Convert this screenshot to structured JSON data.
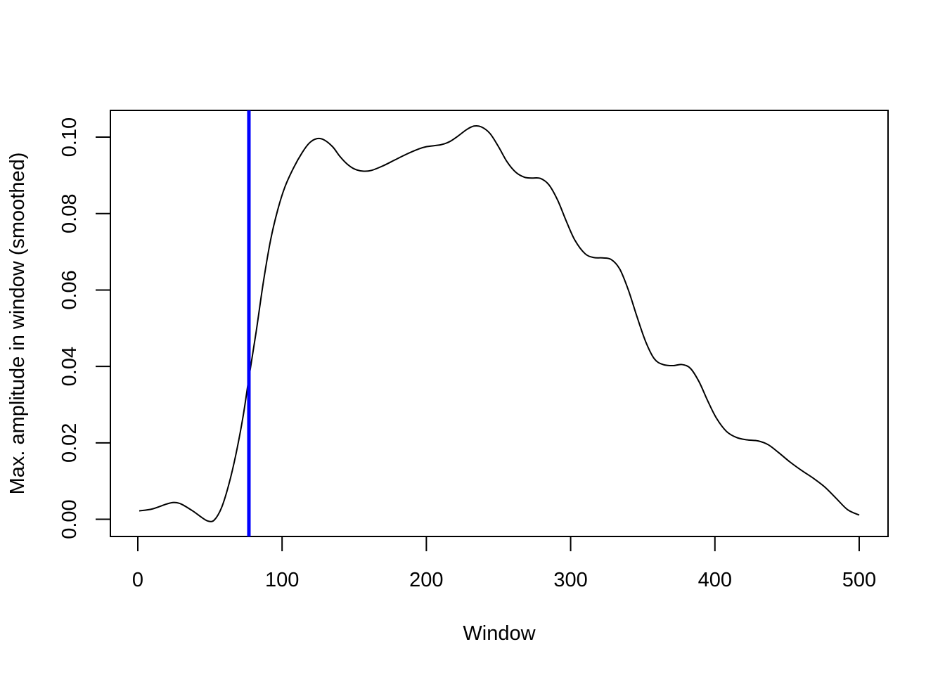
{
  "chart_data": {
    "type": "line",
    "xlabel": "Window",
    "ylabel": "Max. amplitude in window (smoothed)",
    "xlim": [
      -19,
      520
    ],
    "ylim": [
      -0.0045,
      0.107
    ],
    "x_ticks": [
      0,
      100,
      200,
      300,
      400,
      500
    ],
    "y_ticks": [
      0.0,
      0.02,
      0.04,
      0.06,
      0.08,
      0.1
    ],
    "x_tick_labels": [
      "0",
      "100",
      "200",
      "300",
      "400",
      "500"
    ],
    "y_tick_labels": [
      "0.00",
      "0.02",
      "0.04",
      "0.06",
      "0.08",
      "0.10"
    ],
    "grid": false,
    "legend": "none",
    "series": [
      {
        "color": "#000000",
        "points": [
          [
            1,
            0.0022
          ],
          [
            10,
            0.0027
          ],
          [
            20,
            0.004
          ],
          [
            25,
            0.0044
          ],
          [
            30,
            0.004
          ],
          [
            38,
            0.0022
          ],
          [
            45,
            0.0003
          ],
          [
            49,
            -0.0005
          ],
          [
            53,
            -0.0002
          ],
          [
            58,
            0.003
          ],
          [
            63,
            0.009
          ],
          [
            68,
            0.017
          ],
          [
            73,
            0.027
          ],
          [
            77,
            0.037
          ],
          [
            82,
            0.049
          ],
          [
            87,
            0.062
          ],
          [
            92,
            0.073
          ],
          [
            97,
            0.081
          ],
          [
            102,
            0.087
          ],
          [
            108,
            0.092
          ],
          [
            114,
            0.096
          ],
          [
            119,
            0.0985
          ],
          [
            124,
            0.0996
          ],
          [
            129,
            0.0993
          ],
          [
            135,
            0.0975
          ],
          [
            140,
            0.095
          ],
          [
            145,
            0.093
          ],
          [
            150,
            0.0917
          ],
          [
            156,
            0.0911
          ],
          [
            162,
            0.0913
          ],
          [
            170,
            0.0925
          ],
          [
            178,
            0.094
          ],
          [
            186,
            0.0955
          ],
          [
            194,
            0.0968
          ],
          [
            200,
            0.0975
          ],
          [
            210,
            0.098
          ],
          [
            216,
            0.0988
          ],
          [
            222,
            0.1003
          ],
          [
            228,
            0.102
          ],
          [
            233,
            0.1029
          ],
          [
            238,
            0.1027
          ],
          [
            244,
            0.101
          ],
          [
            250,
            0.0975
          ],
          [
            256,
            0.0935
          ],
          [
            262,
            0.0908
          ],
          [
            268,
            0.0895
          ],
          [
            273,
            0.0893
          ],
          [
            279,
            0.0892
          ],
          [
            285,
            0.0875
          ],
          [
            291,
            0.0835
          ],
          [
            297,
            0.078
          ],
          [
            303,
            0.073
          ],
          [
            310,
            0.0695
          ],
          [
            316,
            0.0685
          ],
          [
            322,
            0.0684
          ],
          [
            328,
            0.068
          ],
          [
            334,
            0.0655
          ],
          [
            340,
            0.06
          ],
          [
            346,
            0.053
          ],
          [
            352,
            0.0465
          ],
          [
            358,
            0.042
          ],
          [
            364,
            0.0405
          ],
          [
            371,
            0.0402
          ],
          [
            377,
            0.0405
          ],
          [
            383,
            0.0395
          ],
          [
            389,
            0.036
          ],
          [
            395,
            0.031
          ],
          [
            401,
            0.0265
          ],
          [
            408,
            0.023
          ],
          [
            415,
            0.0214
          ],
          [
            422,
            0.0208
          ],
          [
            430,
            0.0205
          ],
          [
            437,
            0.0195
          ],
          [
            444,
            0.0175
          ],
          [
            452,
            0.015
          ],
          [
            460,
            0.0128
          ],
          [
            468,
            0.0108
          ],
          [
            476,
            0.0085
          ],
          [
            484,
            0.0055
          ],
          [
            492,
            0.0025
          ],
          [
            500,
            0.0011
          ]
        ]
      }
    ],
    "vline": {
      "x": 77,
      "color": "#0000ff"
    }
  }
}
